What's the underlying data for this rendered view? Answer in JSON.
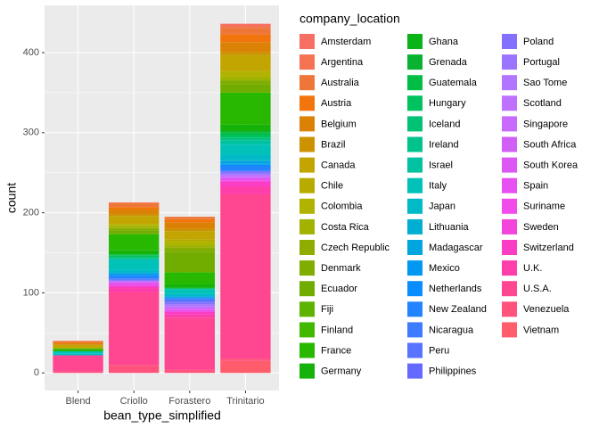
{
  "chart_data": {
    "type": "bar",
    "stacked": true,
    "x_label": "bean_type_simplified",
    "y_label": "count",
    "legend_title": "company_location",
    "categories": [
      "Blend",
      "Criollo",
      "Forastero",
      "Trinitario"
    ],
    "ylim": [
      -22,
      459
    ],
    "yticks": [
      0,
      100,
      200,
      300,
      400
    ],
    "grid": true,
    "legend": "right",
    "series": [
      {
        "name": "Amsterdam",
        "color": "hsl(4,90%,68%)",
        "values": [
          0,
          0,
          0,
          2
        ]
      },
      {
        "name": "Argentina",
        "color": "hsl(12,88%,64%)",
        "values": [
          0,
          1,
          0,
          3
        ]
      },
      {
        "name": "Australia",
        "color": "hsl(20,85%,58%)",
        "values": [
          2,
          5,
          3,
          8
        ]
      },
      {
        "name": "Austria",
        "color": "hsl(27,90%,50%)",
        "values": [
          1,
          3,
          4,
          10
        ]
      },
      {
        "name": "Belgium",
        "color": "hsl(35,95%,44%)",
        "values": [
          2,
          6,
          8,
          12
        ]
      },
      {
        "name": "Brazil",
        "color": "hsl(43,100%,40%)",
        "values": [
          0,
          2,
          3,
          4
        ]
      },
      {
        "name": "Canada",
        "color": "hsl(51,100%,38%)",
        "values": [
          4,
          10,
          10,
          20
        ]
      },
      {
        "name": "Chile",
        "color": "hsl(56,100%,36%)",
        "values": [
          0,
          0,
          2,
          0
        ]
      },
      {
        "name": "Colombia",
        "color": "hsl(61,100%,35%)",
        "values": [
          0,
          3,
          5,
          7
        ]
      },
      {
        "name": "Costa Rica",
        "color": "hsl(66,100%,35%)",
        "values": [
          0,
          2,
          3,
          4
        ]
      },
      {
        "name": "Czech Republic",
        "color": "hsl(71,100%,34%)",
        "values": [
          0,
          1,
          2,
          1
        ]
      },
      {
        "name": "Denmark",
        "color": "hsl(76,100%,34%)",
        "values": [
          1,
          2,
          4,
          5
        ]
      },
      {
        "name": "Ecuador",
        "color": "hsl(81,100%,34%)",
        "values": [
          0,
          4,
          25,
          10
        ]
      },
      {
        "name": "Fiji",
        "color": "hsl(89,100%,35%)",
        "values": [
          0,
          1,
          0,
          0
        ]
      },
      {
        "name": "Finland",
        "color": "hsl(98,100%,36%)",
        "values": [
          0,
          0,
          1,
          0
        ]
      },
      {
        "name": "France",
        "color": "hsl(107,100%,36%)",
        "values": [
          3,
          20,
          14,
          40
        ]
      },
      {
        "name": "Germany",
        "color": "hsl(116,90%,37%)",
        "values": [
          0,
          5,
          4,
          8
        ]
      },
      {
        "name": "Ghana",
        "color": "hsl(125,90%,37%)",
        "values": [
          0,
          0,
          1,
          0
        ]
      },
      {
        "name": "Grenada",
        "color": "hsl(134,90%,37%)",
        "values": [
          0,
          0,
          0,
          2
        ]
      },
      {
        "name": "Guatemala",
        "color": "hsl(142,100%,37%)",
        "values": [
          0,
          1,
          0,
          3
        ]
      },
      {
        "name": "Hungary",
        "color": "hsl(149,100%,38%)",
        "values": [
          0,
          3,
          1,
          3
        ]
      },
      {
        "name": "Iceland",
        "color": "hsl(156,100%,38%)",
        "values": [
          0,
          0,
          0,
          2
        ]
      },
      {
        "name": "Ireland",
        "color": "hsl(163,100%,38%)",
        "values": [
          0,
          1,
          0,
          2
        ]
      },
      {
        "name": "Israel",
        "color": "hsl(170,100%,38%)",
        "values": [
          0,
          2,
          1,
          5
        ]
      },
      {
        "name": "Italy",
        "color": "hsl(177,100%,38%)",
        "values": [
          3,
          12,
          5,
          12
        ]
      },
      {
        "name": "Japan",
        "color": "hsl(184,100%,39%)",
        "values": [
          2,
          4,
          3,
          7
        ]
      },
      {
        "name": "Lithuania",
        "color": "hsl(190,100%,41%)",
        "values": [
          0,
          0,
          1,
          1
        ]
      },
      {
        "name": "Madagascar",
        "color": "hsl(196,100%,44%)",
        "values": [
          0,
          1,
          0,
          4
        ]
      },
      {
        "name": "Mexico",
        "color": "hsl(202,100%,47%)",
        "values": [
          0,
          2,
          1,
          1
        ]
      },
      {
        "name": "Netherlands",
        "color": "hsl(208,100%,52%)",
        "values": [
          0,
          1,
          1,
          2
        ]
      },
      {
        "name": "New Zealand",
        "color": "hsl(214,100%,57%)",
        "values": [
          0,
          3,
          1,
          5
        ]
      },
      {
        "name": "Nicaragua",
        "color": "hsl(221,100%,62%)",
        "values": [
          0,
          1,
          0,
          1
        ]
      },
      {
        "name": "Peru",
        "color": "hsl(230,100%,67%)",
        "values": [
          0,
          1,
          3,
          0
        ]
      },
      {
        "name": "Philippines",
        "color": "hsl(239,100%,70%)",
        "values": [
          0,
          0,
          1,
          1
        ]
      },
      {
        "name": "Poland",
        "color": "hsl(248,100%,72%)",
        "values": [
          0,
          1,
          2,
          2
        ]
      },
      {
        "name": "Portugal",
        "color": "hsl(257,100%,73%)",
        "values": [
          0,
          0,
          1,
          1
        ]
      },
      {
        "name": "Sao Tome",
        "color": "hsl(266,100%,73%)",
        "values": [
          0,
          0,
          2,
          1
        ]
      },
      {
        "name": "Scotland",
        "color": "hsl(273,100%,72%)",
        "values": [
          0,
          2,
          2,
          2
        ]
      },
      {
        "name": "Singapore",
        "color": "hsl(279,95%,70%)",
        "values": [
          0,
          0,
          0,
          1
        ]
      },
      {
        "name": "South Africa",
        "color": "hsl(285,90%,67%)",
        "values": [
          0,
          0,
          1,
          0
        ]
      },
      {
        "name": "South Korea",
        "color": "hsl(291,88%,65%)",
        "values": [
          0,
          0,
          1,
          1
        ]
      },
      {
        "name": "Spain",
        "color": "hsl(296,86%,63%)",
        "values": [
          0,
          4,
          2,
          3
        ]
      },
      {
        "name": "Suriname",
        "color": "hsl(302,86%,62%)",
        "values": [
          0,
          0,
          0,
          0
        ]
      },
      {
        "name": "Sweden",
        "color": "hsl(308,88%,61%)",
        "values": [
          0,
          0,
          1,
          1
        ]
      },
      {
        "name": "Switzerland",
        "color": "hsl(317,95%,61%)",
        "values": [
          0,
          3,
          3,
          6
        ]
      },
      {
        "name": "U.K.",
        "color": "hsl(326,100%,62%)",
        "values": [
          0,
          5,
          4,
          10
        ]
      },
      {
        "name": "U.S.A.",
        "color": "hsl(336,100%,64%)",
        "values": [
          20,
          91,
          65,
          205
        ]
      },
      {
        "name": "Venezuela",
        "color": "hsl(345,100%,66%)",
        "values": [
          2,
          10,
          4,
          3
        ]
      },
      {
        "name": "Vietnam",
        "color": "hsl(354,100%,68%)",
        "values": [
          0,
          0,
          0,
          15
        ]
      }
    ]
  }
}
